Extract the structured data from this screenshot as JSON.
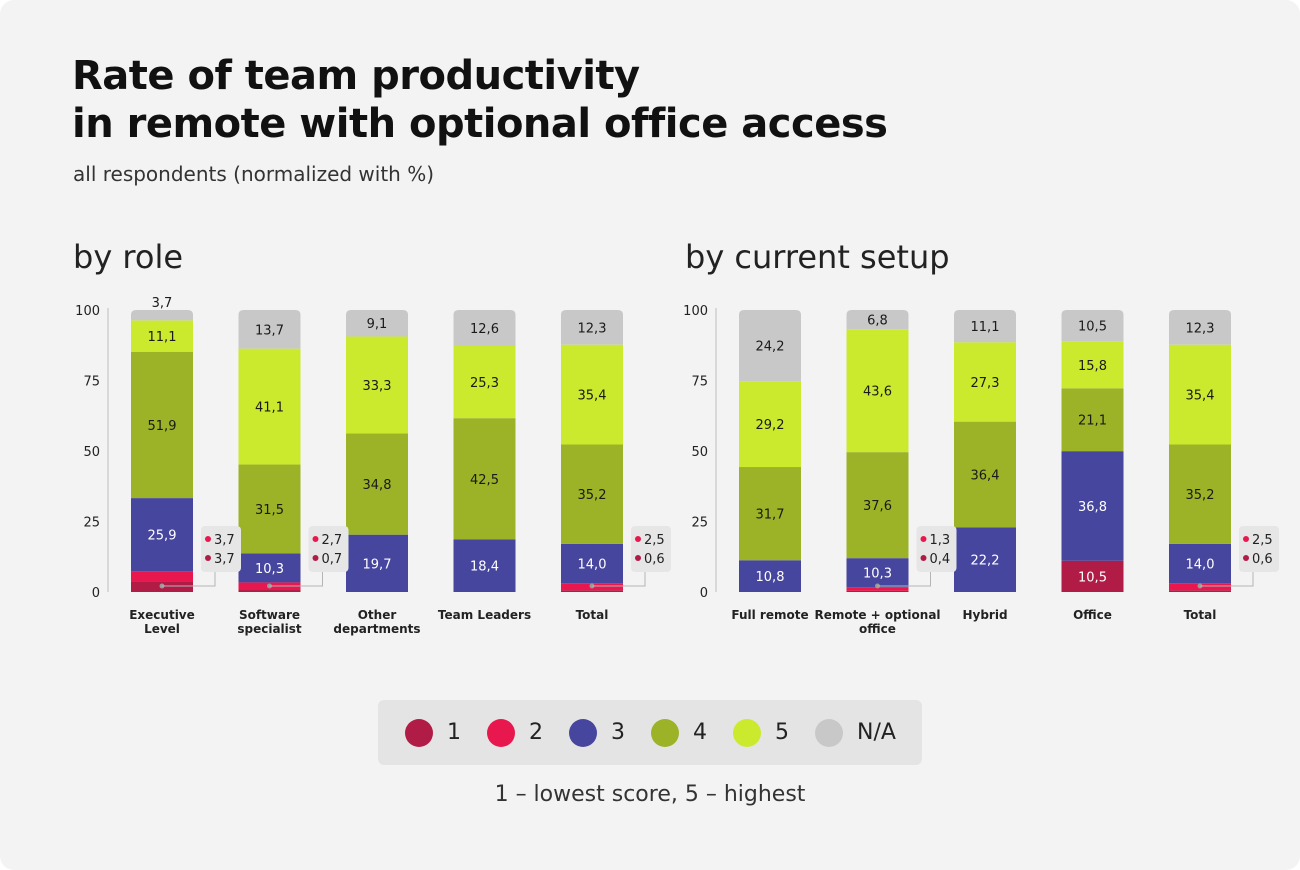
{
  "title_line1": "Rate of team productivity",
  "title_line2": "in remote with optional office access",
  "subtitle": "all respondents (normalized with %)",
  "footnote": "1 – lowest score, 5 – highest",
  "colors": {
    "1": "#b01c45",
    "2": "#e8184e",
    "3": "#47469e",
    "4": "#9cb327",
    "5": "#cbea2e",
    "na": "#c8c8c8"
  },
  "legend": [
    {
      "label": "1",
      "key": "1"
    },
    {
      "label": "2",
      "key": "2"
    },
    {
      "label": "3",
      "key": "3"
    },
    {
      "label": "4",
      "key": "4"
    },
    {
      "label": "5",
      "key": "5"
    },
    {
      "label": "N/A",
      "key": "na"
    }
  ],
  "chart_data": [
    {
      "type": "bar",
      "stacked": true,
      "title": "by role",
      "y_ticks": [
        "0",
        "25",
        "50",
        "75",
        "100"
      ],
      "ylim": [
        0,
        100
      ],
      "categories": [
        [
          "Executive",
          "Level"
        ],
        [
          "Software",
          "specialist"
        ],
        [
          "Other",
          "departments"
        ],
        [
          "Team Leaders"
        ],
        [
          "Total"
        ]
      ],
      "series": [
        {
          "key": "1",
          "values": [
            3.7,
            0.7,
            null,
            null,
            0.6
          ]
        },
        {
          "key": "2",
          "values": [
            3.7,
            2.7,
            null,
            null,
            2.5
          ]
        },
        {
          "key": "3",
          "values": [
            25.9,
            10.3,
            19.7,
            18.4,
            14.0
          ]
        },
        {
          "key": "4",
          "values": [
            51.9,
            31.5,
            34.8,
            42.5,
            35.2
          ]
        },
        {
          "key": "5",
          "values": [
            11.1,
            41.1,
            33.3,
            25.3,
            35.4
          ]
        },
        {
          "key": "na",
          "values": [
            3.7,
            13.7,
            9.1,
            12.6,
            12.3
          ]
        }
      ],
      "bar_labels": [
        {
          "3": "25,9",
          "4": "51,9",
          "5": "11,1",
          "na": "3,7"
        },
        {
          "3": "10,3",
          "4": "31,5",
          "5": "41,1",
          "na": "13,7"
        },
        {
          "3": "19,7",
          "4": "34,8",
          "5": "33,3",
          "na": "9,1"
        },
        {
          "3": "18,4",
          "4": "42,5",
          "5": "25,3",
          "na": "12,6"
        },
        {
          "3": "14,0",
          "4": "35,2",
          "5": "35,4",
          "na": "12,3"
        }
      ],
      "callouts": [
        {
          "index": 0,
          "v2": "3,7",
          "v1": "3,7"
        },
        {
          "index": 1,
          "v2": "2,7",
          "v1": "0,7"
        },
        {
          "index": 4,
          "v2": "2,5",
          "v1": "0,6"
        }
      ]
    },
    {
      "type": "bar",
      "stacked": true,
      "title": "by current setup",
      "y_ticks": [
        "0",
        "25",
        "50",
        "75",
        "100"
      ],
      "ylim": [
        0,
        100
      ],
      "categories": [
        [
          "Full remote"
        ],
        [
          "Remote + optional",
          "office"
        ],
        [
          "Hybrid"
        ],
        [
          "Office"
        ],
        [
          "Total"
        ]
      ],
      "series": [
        {
          "key": "1",
          "values": [
            null,
            0.4,
            null,
            10.5,
            0.6
          ]
        },
        {
          "key": "2",
          "values": [
            null,
            1.3,
            null,
            null,
            2.5
          ]
        },
        {
          "key": "3",
          "values": [
            10.8,
            10.3,
            22.2,
            36.8,
            14.0
          ]
        },
        {
          "key": "4",
          "values": [
            31.7,
            37.6,
            36.4,
            21.1,
            35.2
          ]
        },
        {
          "key": "5",
          "values": [
            29.2,
            43.6,
            27.3,
            15.8,
            35.4
          ]
        },
        {
          "key": "na",
          "values": [
            24.2,
            6.8,
            11.1,
            10.5,
            12.3
          ]
        }
      ],
      "bar_labels": [
        {
          "3": "10,8",
          "4": "31,7",
          "5": "29,2",
          "na": "24,2"
        },
        {
          "3": "10,3",
          "4": "37,6",
          "5": "43,6",
          "na": "6,8"
        },
        {
          "3": "22,2",
          "4": "36,4",
          "5": "27,3",
          "na": "11,1"
        },
        {
          "1": "10,5",
          "3": "36,8",
          "4": "21,1",
          "5": "15,8",
          "na": "10,5"
        },
        {
          "3": "14,0",
          "4": "35,2",
          "5": "35,4",
          "na": "12,3"
        }
      ],
      "callouts": [
        {
          "index": 1,
          "v2": "1,3",
          "v1": "0,4"
        },
        {
          "index": 4,
          "v2": "2,5",
          "v1": "0,6"
        }
      ]
    }
  ]
}
